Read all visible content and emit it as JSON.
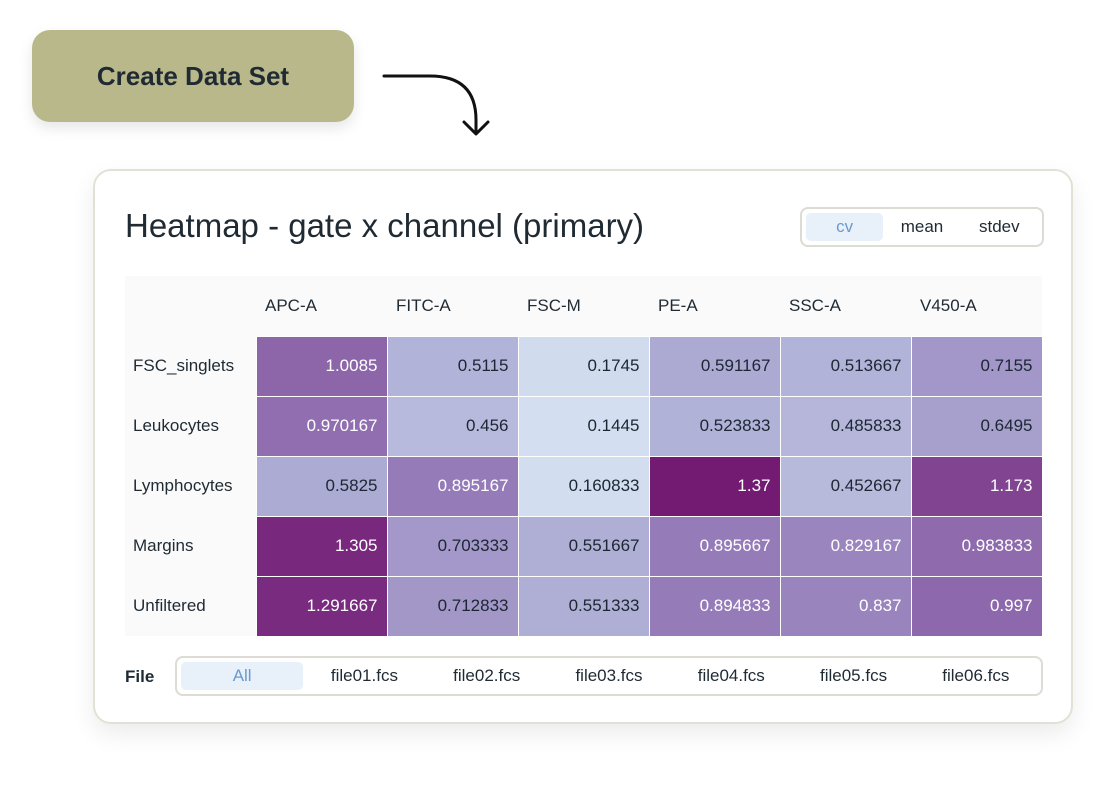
{
  "create_button": {
    "label": "Create Data Set",
    "color": "#b9b88a"
  },
  "card": {
    "title": "Heatmap - gate x channel (primary)",
    "metric_options": [
      "cv",
      "mean",
      "stdev"
    ],
    "metric_selected": "cv",
    "file_label": "File",
    "file_options": [
      "All",
      "file01.fcs",
      "file02.fcs",
      "file03.fcs",
      "file04.fcs",
      "file05.fcs",
      "file06.fcs"
    ],
    "file_selected": "All"
  },
  "chart_data": {
    "type": "heatmap",
    "title": "Heatmap - gate x channel (primary)",
    "columns": [
      "APC-A",
      "FITC-A",
      "FSC-M",
      "PE-A",
      "SSC-A",
      "V450-A"
    ],
    "rows": [
      "FSC_singlets",
      "Leukocytes",
      "Lymphocytes",
      "Margins",
      "Unfiltered"
    ],
    "values": [
      [
        "1.0085",
        "0.5115",
        "0.1745",
        "0.591167",
        "0.513667",
        "0.7155"
      ],
      [
        "0.970167",
        "0.456",
        "0.1445",
        "0.523833",
        "0.485833",
        "0.6495"
      ],
      [
        "0.5825",
        "0.895167",
        "0.160833",
        "1.37",
        "0.452667",
        "1.173"
      ],
      [
        "1.305",
        "0.703333",
        "0.551667",
        "0.895667",
        "0.829167",
        "0.983833"
      ],
      [
        "1.291667",
        "0.712833",
        "0.551333",
        "0.894833",
        "0.837",
        "0.997"
      ]
    ],
    "color_low": "#d3dff0",
    "color_high": "#731b73"
  }
}
